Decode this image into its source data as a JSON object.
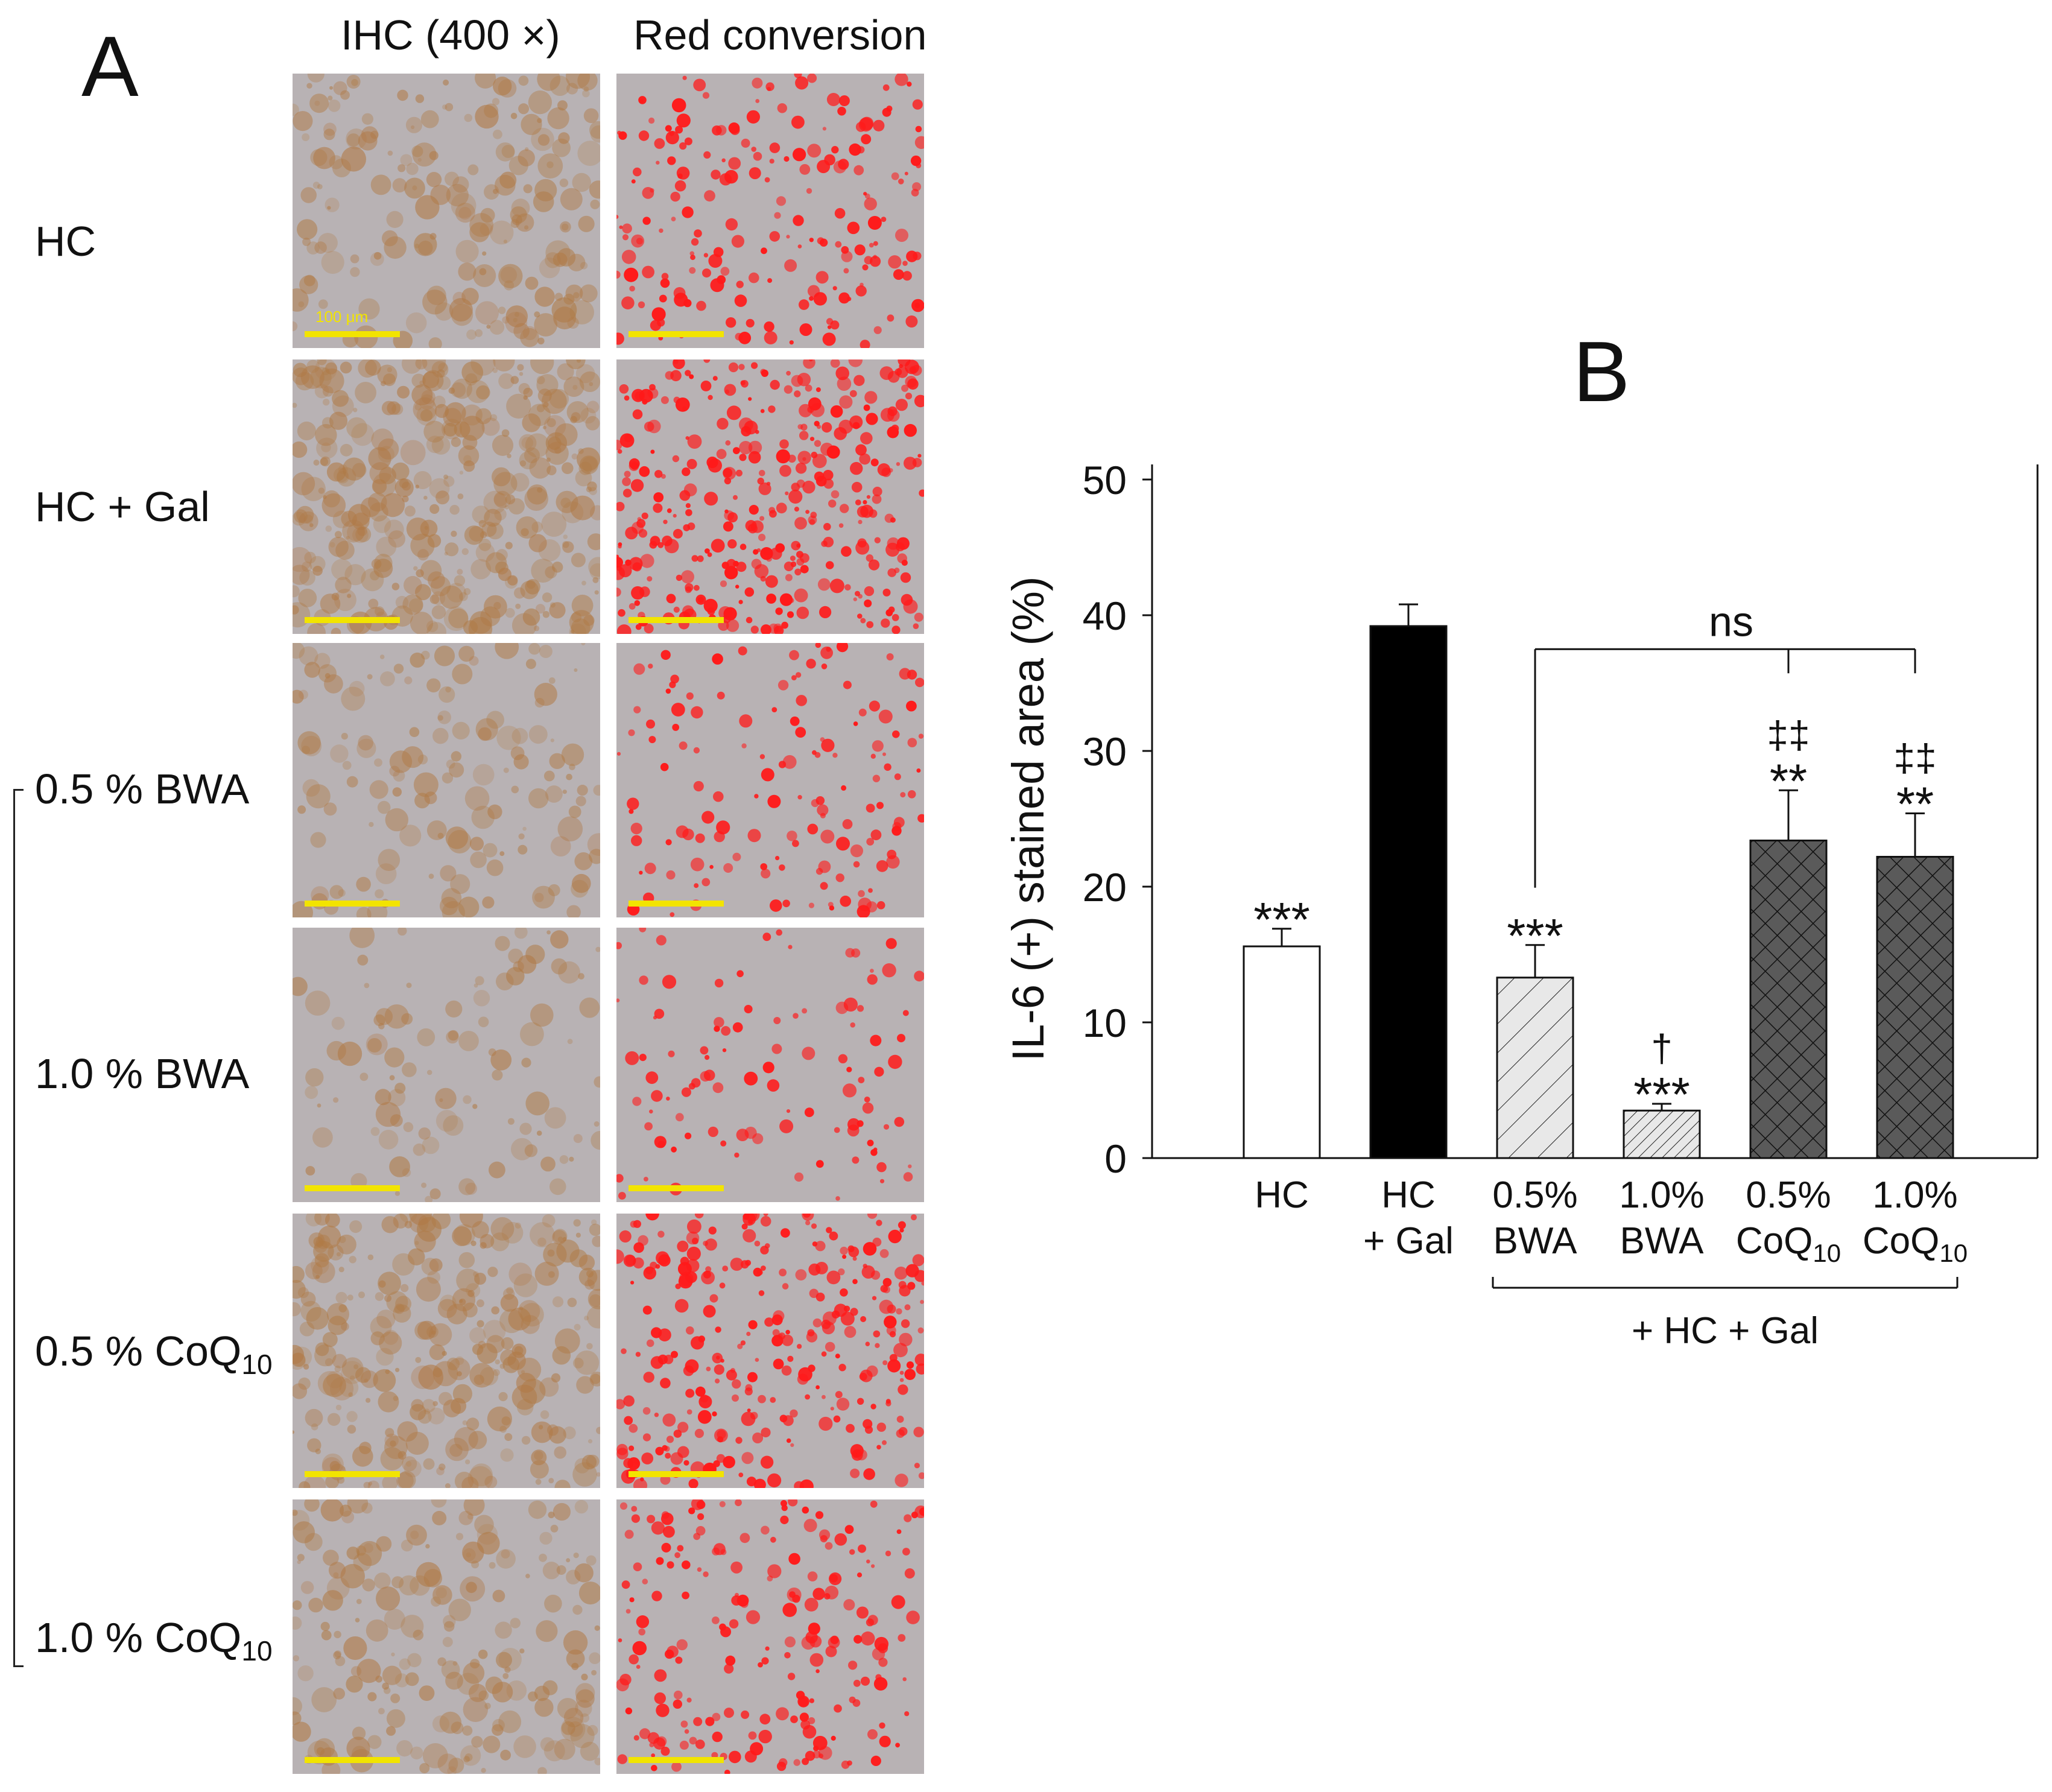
{
  "panel_a": {
    "letter": "A",
    "columns": [
      "IHC (400 ×)",
      "Red conversion"
    ],
    "rows": [
      {
        "label": "HC",
        "sub": ""
      },
      {
        "label": "HC + Gal",
        "sub": ""
      },
      {
        "label": "0.5 % BWA",
        "sub": ""
      },
      {
        "label": "1.0 % BWA",
        "sub": ""
      },
      {
        "label": "0.5 % CoQ",
        "sub": "10"
      },
      {
        "label": "1.0 % CoQ",
        "sub": "10"
      }
    ],
    "scale_bar_label": "100 μm",
    "stain_levels": [
      0.3,
      0.7,
      0.15,
      0.05,
      0.55,
      0.3
    ],
    "colors": {
      "ihc_base": "#b8b2b4",
      "ihc_brown": "#b07a46",
      "red": "#ff1a1a",
      "scale_bar": "#f2e400"
    }
  },
  "chart_data": {
    "type": "bar",
    "panel_letter": "B",
    "title": "",
    "ylabel": "IL-6 (+) stained area (%)",
    "ylim": [
      0,
      50
    ],
    "yticks": [
      0,
      10,
      20,
      30,
      40,
      50
    ],
    "categories": [
      {
        "line1": "HC",
        "line2": "",
        "sub": ""
      },
      {
        "line1": "HC",
        "line2": "+ Gal",
        "sub": ""
      },
      {
        "line1": "0.5%",
        "line2": "BWA",
        "sub": ""
      },
      {
        "line1": "1.0%",
        "line2": "BWA",
        "sub": ""
      },
      {
        "line1": "0.5%",
        "line2": "CoQ",
        "sub": "10"
      },
      {
        "line1": "1.0%",
        "line2": "CoQ",
        "sub": "10"
      }
    ],
    "values": [
      15.6,
      39.2,
      13.3,
      3.5,
      23.4,
      22.2
    ],
    "errors": [
      1.3,
      1.6,
      2.4,
      0.5,
      3.7,
      3.2
    ],
    "fills": [
      "white",
      "black",
      "light-hatch",
      "dense-hatch",
      "cross-hatch",
      "cross-hatch"
    ],
    "annotations": [
      {
        "bar": 0,
        "lines": [
          "***"
        ]
      },
      {
        "bar": 1,
        "lines": []
      },
      {
        "bar": 2,
        "lines": [
          "***"
        ]
      },
      {
        "bar": 3,
        "lines": [
          "†",
          "***"
        ]
      },
      {
        "bar": 4,
        "lines": [
          "‡‡",
          "**"
        ]
      },
      {
        "bar": 5,
        "lines": [
          "‡‡",
          "**"
        ]
      }
    ],
    "comparison": {
      "label": "ns",
      "from_bar": 2,
      "to_bar": 5,
      "mid_bar": 4,
      "level": 37.5
    },
    "group_label": {
      "text": "+ HC + Gal",
      "from_bar": 2,
      "to_bar": 5
    },
    "grid": false,
    "colors": {
      "axis": "#111111",
      "dark_fill": "#5a5a5a",
      "light_fill": "#e8e8e8",
      "bar_black": "#000000"
    }
  }
}
